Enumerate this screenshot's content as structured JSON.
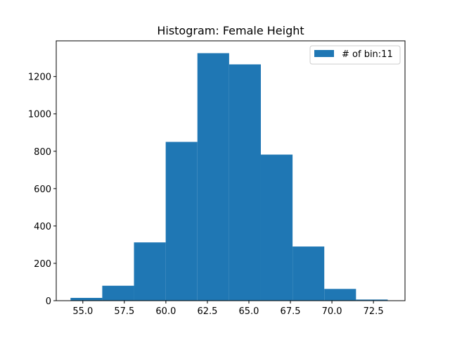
{
  "chart_data": {
    "type": "bar",
    "title": "Histogram: Female Height",
    "xlabel": "",
    "ylabel": "",
    "bins": [
      {
        "start": 54.26,
        "end": 56.17,
        "count": 15
      },
      {
        "start": 56.17,
        "end": 58.08,
        "count": 80
      },
      {
        "start": 58.08,
        "end": 59.99,
        "count": 312
      },
      {
        "start": 59.99,
        "end": 61.9,
        "count": 850
      },
      {
        "start": 61.9,
        "end": 63.81,
        "count": 1325
      },
      {
        "start": 63.81,
        "end": 65.72,
        "count": 1265
      },
      {
        "start": 65.72,
        "end": 67.63,
        "count": 782
      },
      {
        "start": 67.63,
        "end": 69.54,
        "count": 290
      },
      {
        "start": 69.54,
        "end": 71.45,
        "count": 63
      },
      {
        "start": 71.45,
        "end": 73.36,
        "count": 6
      },
      {
        "start": 73.36,
        "end": 73.4,
        "count": 0
      }
    ],
    "xlim": [
      53.4,
      74.4
    ],
    "ylim": [
      0,
      1391
    ],
    "xticks": [
      55.0,
      57.5,
      60.0,
      62.5,
      65.0,
      67.5,
      70.0,
      72.5
    ],
    "xtick_labels": [
      "55.0",
      "57.5",
      "60.0",
      "62.5",
      "65.0",
      "67.5",
      "70.0",
      "72.5"
    ],
    "yticks": [
      0,
      200,
      400,
      600,
      800,
      1000,
      1200
    ],
    "ytick_labels": [
      "0",
      "200",
      "400",
      "600",
      "800",
      "1000",
      "1200"
    ],
    "legend": {
      "label": "# of bin:11",
      "placement": "top-right"
    },
    "bar_color": "#1f77b4",
    "grid": false
  }
}
